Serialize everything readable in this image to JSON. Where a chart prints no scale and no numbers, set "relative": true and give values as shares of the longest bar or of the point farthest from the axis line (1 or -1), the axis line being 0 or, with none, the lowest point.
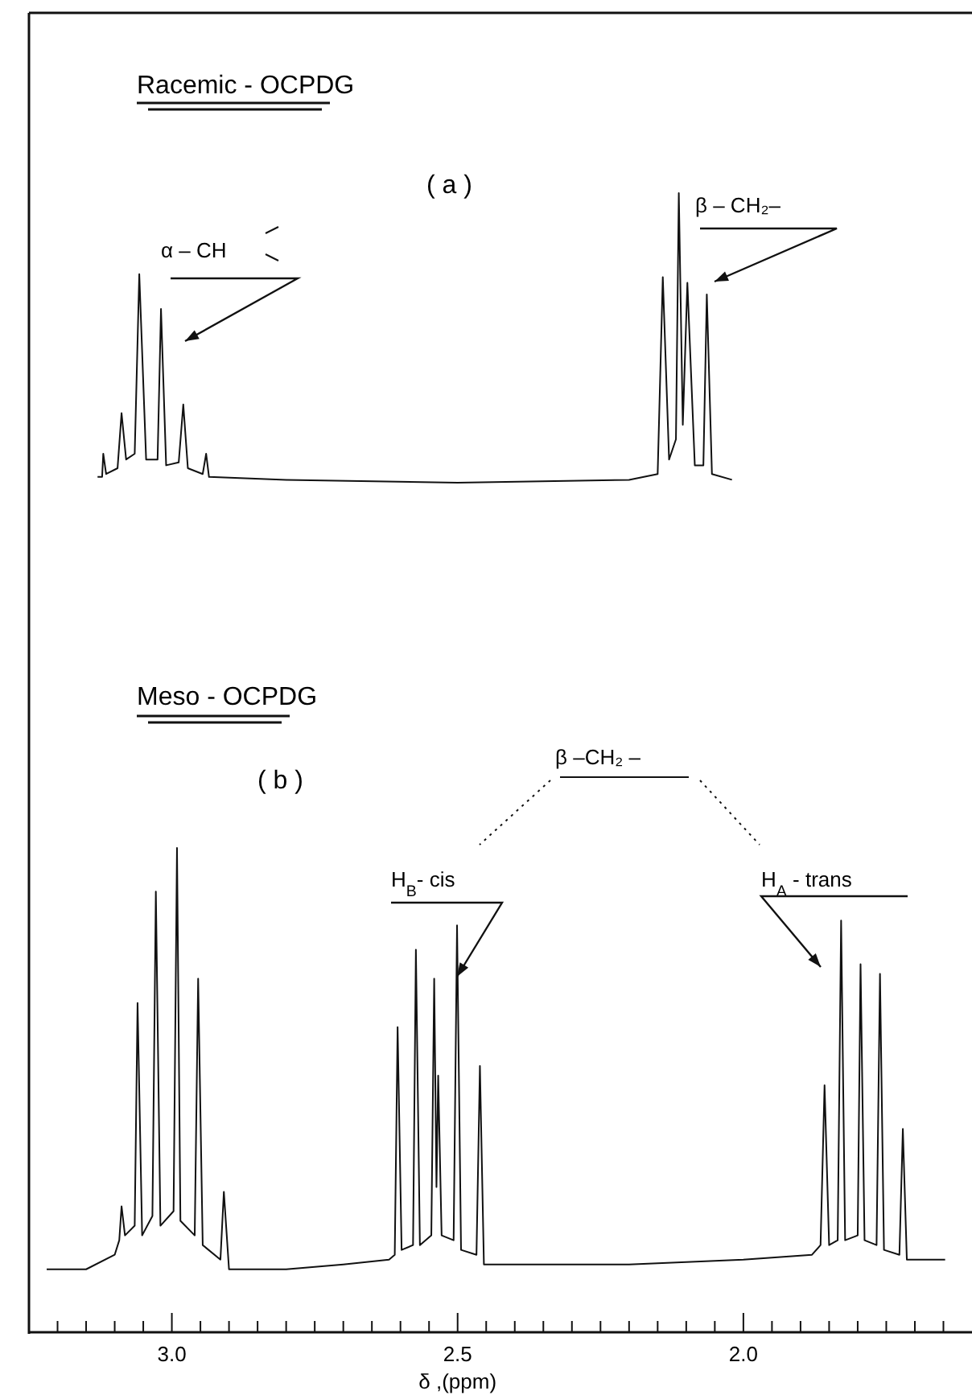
{
  "chart_data": [
    {
      "type": "line",
      "title": "Racemic - OCPDG",
      "subtitle": "( a )",
      "relative": true,
      "tick_labels": false,
      "xlim": [
        3.25,
        1.6
      ],
      "annotations": [
        "α – CH",
        "β – CH₂–"
      ],
      "series": [
        {
          "color": "#111111",
          "x": [
            3.13,
            3.122,
            3.12,
            3.115,
            3.095,
            3.088,
            3.08,
            3.065,
            3.057,
            3.045,
            3.025,
            3.019,
            3.01,
            2.988,
            2.98,
            2.972,
            2.946,
            2.94,
            2.935,
            2.8,
            2.5,
            2.2,
            2.15,
            2.141,
            2.13,
            2.118,
            2.113,
            2.106,
            2.098,
            2.085,
            2.07,
            2.064,
            2.055,
            2.02
          ],
          "values": [
            0.02,
            0.02,
            0.1,
            0.03,
            0.05,
            0.24,
            0.08,
            0.1,
            0.72,
            0.08,
            0.08,
            0.6,
            0.06,
            0.07,
            0.27,
            0.05,
            0.03,
            0.1,
            0.02,
            0.01,
            0,
            0.01,
            0.03,
            0.71,
            0.08,
            0.15,
            1,
            0.2,
            0.69,
            0.06,
            0.06,
            0.65,
            0.03,
            0.01
          ]
        }
      ]
    },
    {
      "type": "line",
      "title": "Meso - OCPDG",
      "subtitle": "( b )",
      "xlabel": "δ ,(ppm)",
      "relative": true,
      "xlim": [
        3.25,
        1.6
      ],
      "xticks": [
        {
          "value": 3.2,
          "label": null
        },
        {
          "value": 3.15,
          "label": null
        },
        {
          "value": 3.1,
          "label": null
        },
        {
          "value": 3.05,
          "label": null
        },
        {
          "value": 3.0,
          "label": "3.0"
        },
        {
          "value": 2.95,
          "label": null
        },
        {
          "value": 2.9,
          "label": null
        },
        {
          "value": 2.85,
          "label": null
        },
        {
          "value": 2.8,
          "label": null
        },
        {
          "value": 2.75,
          "label": null
        },
        {
          "value": 2.7,
          "label": null
        },
        {
          "value": 2.65,
          "label": null
        },
        {
          "value": 2.6,
          "label": null
        },
        {
          "value": 2.55,
          "label": null
        },
        {
          "value": 2.5,
          "label": "2.5"
        },
        {
          "value": 2.45,
          "label": null
        },
        {
          "value": 2.4,
          "label": null
        },
        {
          "value": 2.35,
          "label": null
        },
        {
          "value": 2.3,
          "label": null
        },
        {
          "value": 2.25,
          "label": null
        },
        {
          "value": 2.2,
          "label": null
        },
        {
          "value": 2.15,
          "label": null
        },
        {
          "value": 2.1,
          "label": null
        },
        {
          "value": 2.05,
          "label": null
        },
        {
          "value": 2.0,
          "label": "2.0"
        },
        {
          "value": 1.95,
          "label": null
        },
        {
          "value": 1.9,
          "label": null
        },
        {
          "value": 1.85,
          "label": null
        },
        {
          "value": 1.8,
          "label": null
        },
        {
          "value": 1.75,
          "label": null
        },
        {
          "value": 1.7,
          "label": null
        },
        {
          "value": 1.65,
          "label": null
        }
      ],
      "annotations": [
        "β –CH₂ –",
        "H$_{B}$- cis",
        "H$_{A}$ - trans"
      ],
      "series": [
        {
          "color": "#111111",
          "x": [
            3.219,
            3.15,
            3.1,
            3.092,
            3.088,
            3.082,
            3.065,
            3.06,
            3.052,
            3.034,
            3.028,
            3.02,
            2.997,
            2.991,
            2.985,
            2.96,
            2.954,
            2.946,
            2.915,
            2.909,
            2.9,
            2.8,
            2.7,
            2.62,
            2.61,
            2.605,
            2.598,
            2.578,
            2.573,
            2.566,
            2.546,
            2.541,
            2.537,
            2.534,
            2.528,
            2.507,
            2.501,
            2.494,
            2.467,
            2.461,
            2.454,
            2.4,
            2.2,
            2.0,
            1.88,
            1.865,
            1.858,
            1.85,
            1.835,
            1.829,
            1.822,
            1.8,
            1.795,
            1.788,
            1.767,
            1.761,
            1.754,
            1.727,
            1.721,
            1.714,
            1.68,
            1.647
          ],
          "values": [
            0.13,
            0.13,
            0.16,
            0.19,
            0.26,
            0.2,
            0.22,
            0.68,
            0.2,
            0.24,
            0.91,
            0.22,
            0.25,
            1,
            0.23,
            0.2,
            0.73,
            0.18,
            0.15,
            0.29,
            0.13,
            0.13,
            0.14,
            0.15,
            0.16,
            0.63,
            0.17,
            0.18,
            0.79,
            0.18,
            0.2,
            0.73,
            0.3,
            0.53,
            0.2,
            0.19,
            0.84,
            0.17,
            0.16,
            0.55,
            0.14,
            0.14,
            0.14,
            0.15,
            0.16,
            0.18,
            0.51,
            0.18,
            0.19,
            0.85,
            0.19,
            0.2,
            0.76,
            0.19,
            0.18,
            0.74,
            0.17,
            0.16,
            0.42,
            0.15,
            0.15,
            0.15
          ]
        }
      ]
    }
  ]
}
